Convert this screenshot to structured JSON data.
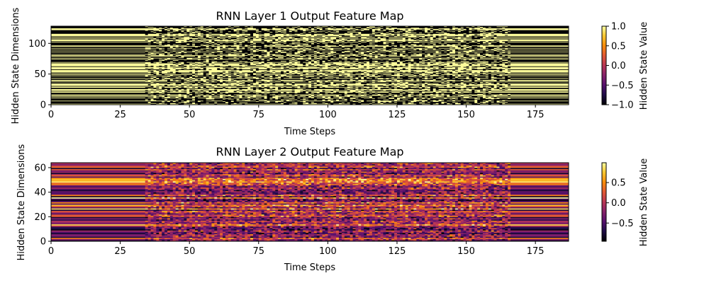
{
  "colormap": "inferno",
  "chart_data": [
    {
      "type": "heatmap",
      "title": "RNN Layer 1 Output Feature Map",
      "xlabel": "Time Steps",
      "ylabel": "Hidden State Dimensions",
      "xlim": [
        0,
        187
      ],
      "ylim": [
        0,
        128
      ],
      "xticks": [
        "0",
        "25",
        "50",
        "75",
        "100",
        "125",
        "150",
        "175"
      ],
      "xtick_values": [
        0,
        25,
        50,
        75,
        100,
        125,
        150,
        175
      ],
      "yticks": [
        "0",
        "50",
        "100"
      ],
      "ytick_values": [
        0,
        50,
        100
      ],
      "value_range": [
        -1.0,
        1.0
      ],
      "active_time_range": [
        34,
        165
      ],
      "colorbar": {
        "label": "Hidden State Value",
        "ticks": [
          "1.0",
          "0.5",
          "0.0",
          "−0.5",
          "−1.0"
        ],
        "tick_values": [
          1.0,
          0.5,
          0.0,
          -0.5,
          -1.0
        ],
        "range": [
          -1.0,
          1.0
        ]
      }
    },
    {
      "type": "heatmap",
      "title": "RNN Layer 2 Output Feature Map",
      "xlabel": "Time Steps",
      "ylabel": "Hidden State Dimensions",
      "xlim": [
        0,
        187
      ],
      "ylim": [
        0,
        64
      ],
      "xticks": [
        "0",
        "25",
        "50",
        "75",
        "100",
        "125",
        "150",
        "175"
      ],
      "xtick_values": [
        0,
        25,
        50,
        75,
        100,
        125,
        150,
        175
      ],
      "yticks": [
        "0",
        "20",
        "40",
        "60"
      ],
      "ytick_values": [
        0,
        20,
        40,
        60
      ],
      "value_range": [
        -0.95,
        0.99
      ],
      "active_time_range": [
        34,
        165
      ],
      "colorbar": {
        "label": "Hidden State Value",
        "ticks": [
          "0.5",
          "0.0",
          "−0.5"
        ],
        "tick_values": [
          0.5,
          0.0,
          -0.5
        ],
        "range": [
          -0.95,
          0.99
        ]
      }
    }
  ]
}
